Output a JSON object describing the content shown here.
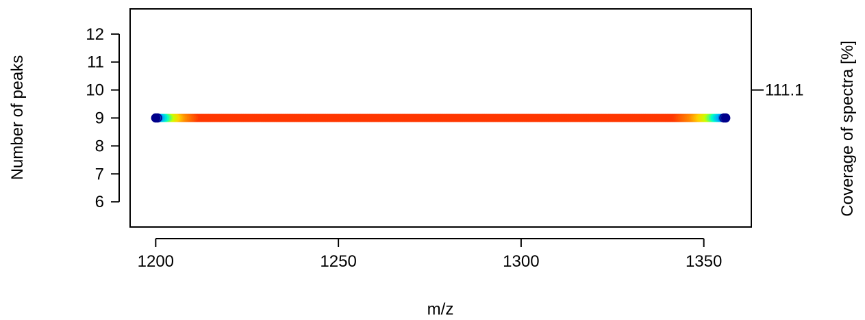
{
  "chart_data": {
    "type": "scatter",
    "xlabel": "m/z",
    "ylabel": "Number of peaks",
    "ylabel_right": "Coverage of spectra [%]",
    "xlim": [
      1193,
      1363
    ],
    "ylim": [
      5.1,
      12.9
    ],
    "x_ticks": [
      1200,
      1250,
      1300,
      1350
    ],
    "x_tick_labels": [
      "1200",
      "1250",
      "1300",
      "1350"
    ],
    "y_ticks": [
      6,
      7,
      8,
      9,
      10,
      11,
      12
    ],
    "y_tick_labels": [
      "6",
      "7",
      "8",
      "9",
      "10",
      "11",
      "12"
    ],
    "y_right_ticks": [
      10
    ],
    "y_right_tick_labels": [
      "111.1"
    ],
    "grid": false,
    "series": [
      {
        "x_start": 1200,
        "x_end": 1356,
        "x_step": 0.5,
        "y": 9,
        "color_map": "blue-cyan-yellow-orange-red (density)"
      }
    ]
  }
}
